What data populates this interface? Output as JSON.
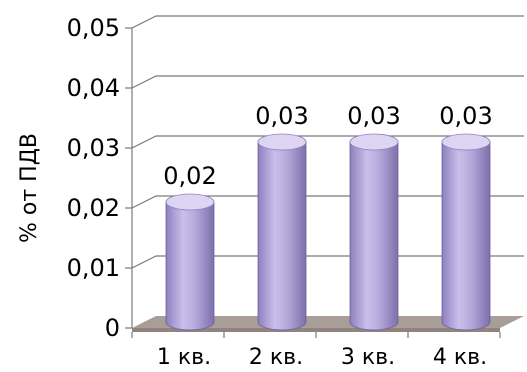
{
  "chart_data": {
    "type": "bar",
    "style": "3d-cylinder",
    "categories": [
      "1 кв.",
      "2 кв.",
      "3 кв.",
      "4 кв."
    ],
    "values": [
      0.02,
      0.03,
      0.03,
      0.03
    ],
    "data_labels": [
      "0,02",
      "0,03",
      "0,03",
      "0,03"
    ],
    "ylabel": "% от ПДВ",
    "xlabel": "",
    "ylim": [
      0,
      0.05
    ],
    "yticks": [
      "0",
      "0,01",
      "0,02",
      "0,03",
      "0,04",
      "0,05"
    ],
    "grid": true,
    "legend": "none",
    "colors": {
      "bar_body": "#b3a6d9",
      "bar_light": "#ddd5f3",
      "bar_dark": "#7f72ad",
      "floor": "#a99d98",
      "grid": "#7a7a7a"
    }
  }
}
